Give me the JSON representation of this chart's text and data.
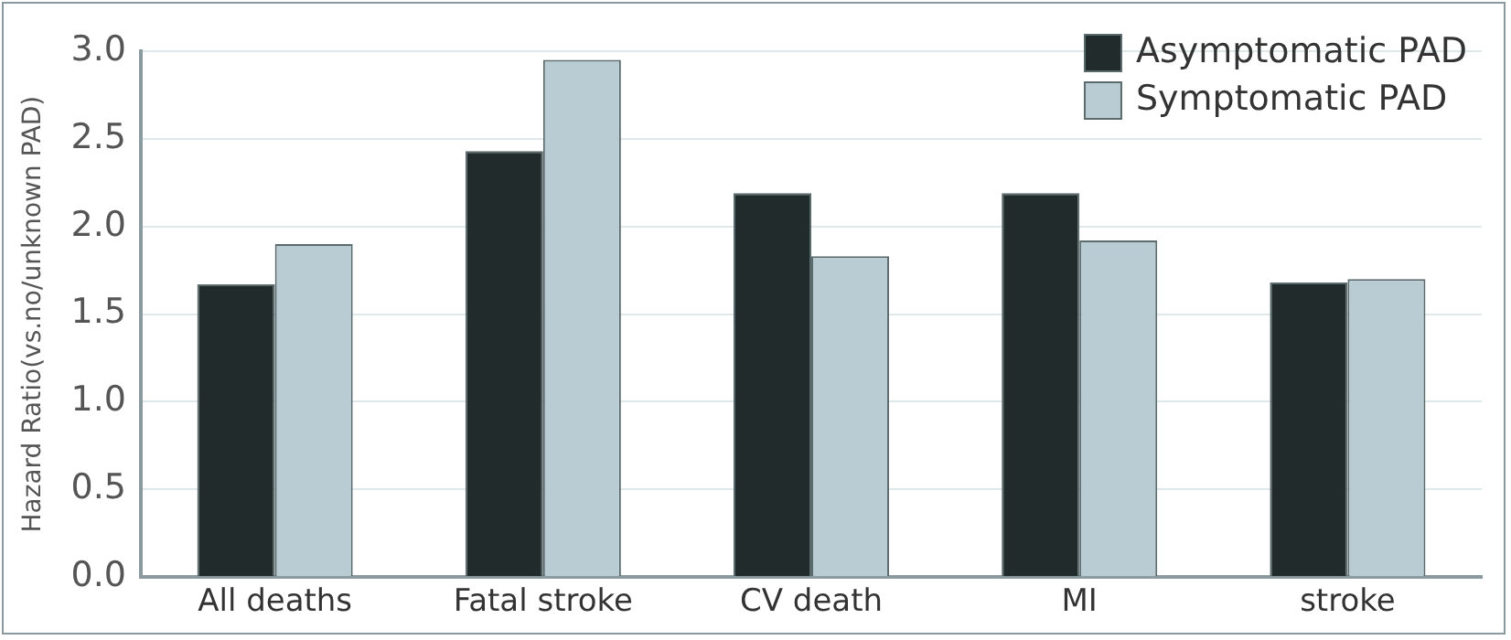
{
  "chart_data": {
    "type": "bar",
    "ylabel": "Hazard Ratio(vs.no/unknown PAD)",
    "categories": [
      "All deaths",
      "Fatal stroke",
      "CV death",
      "MI",
      "stroke"
    ],
    "series": [
      {
        "name": "Asymptomatic PAD",
        "color": "#222b2b",
        "values": [
          1.67,
          2.43,
          2.19,
          2.19,
          1.68
        ]
      },
      {
        "name": "Symptomatic PAD",
        "color": "#b9ccd3",
        "values": [
          1.9,
          2.95,
          1.83,
          1.92,
          1.7
        ]
      }
    ],
    "ylim": [
      0,
      3
    ],
    "yticks": [
      {
        "value": 0,
        "label": "0.0"
      },
      0.5,
      {
        "value": 1,
        "label": "1.0"
      },
      1.5,
      {
        "value": 2,
        "label": "2.0"
      },
      2.5,
      {
        "value": 3,
        "label": "3.0"
      }
    ],
    "grid": "y",
    "legend": "top right"
  }
}
